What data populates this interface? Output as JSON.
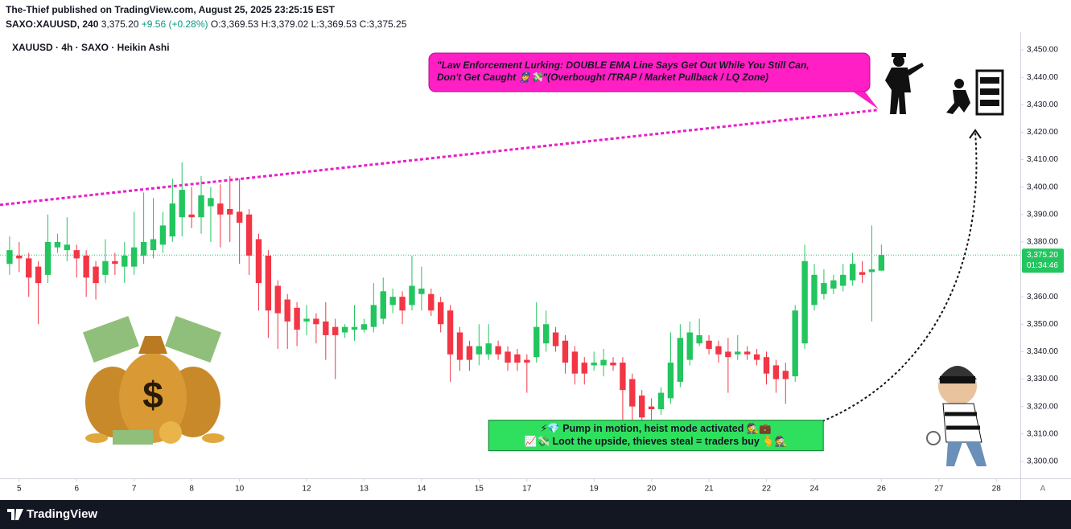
{
  "header": {
    "author_line": "The-Thief published on TradingView.com, August 25, 2025 23:25:15 EST",
    "symbol": "SAXO:XAUUSD, 240",
    "price": "3,375.20",
    "change": "+9.56 (+0.28%)",
    "ohlc": "O:3,369.53 H:3,379.02 L:3,369.53 C:3,375.25"
  },
  "footer": {
    "brand": "TradingView"
  },
  "chart_data": {
    "type": "candlestick",
    "title": "XAUUSD · 4h · SAXO · Heikin Ashi",
    "up_color": "#22c55e",
    "down_color": "#f23645",
    "x": [
      0,
      1,
      2,
      3,
      4,
      5,
      6,
      7,
      8,
      9,
      10,
      11,
      12,
      13,
      14,
      15,
      16,
      17,
      18,
      19,
      20,
      21,
      22,
      23,
      24,
      25,
      26,
      27,
      28,
      29,
      30,
      31,
      32,
      33,
      34,
      35,
      36,
      37,
      38,
      39,
      40,
      41,
      42,
      43,
      44,
      45,
      46,
      47,
      48,
      49,
      50,
      51,
      52,
      53,
      54,
      55,
      56,
      57,
      58,
      59,
      60,
      61,
      62,
      63,
      64,
      65,
      66,
      67,
      68,
      69,
      70,
      71,
      72,
      73,
      74,
      75,
      76,
      77,
      78,
      79,
      80,
      81,
      82,
      83,
      84,
      85,
      86,
      87,
      88,
      89,
      90,
      91
    ],
    "open": [
      3372,
      3375,
      3374,
      3371,
      3368,
      3378,
      3377,
      3377,
      3375,
      3371,
      3368,
      3373,
      3371,
      3371,
      3375,
      3377,
      3379,
      3382,
      3389,
      3390,
      3389,
      3393,
      3394,
      3392,
      3391,
      3390,
      3381,
      3375,
      3364,
      3359,
      3356,
      3351,
      3352,
      3351,
      3349,
      3347,
      3348,
      3348,
      3349,
      3352,
      3357,
      3360,
      3357,
      3361,
      3361,
      3358,
      3355,
      3347,
      3342,
      3339,
      3339,
      3342,
      3340,
      3339,
      3337,
      3338,
      3343,
      3347,
      3344,
      3340,
      3336,
      3335,
      3335,
      3336,
      3336,
      3330,
      3324,
      3320,
      3319,
      3323,
      3329,
      3337,
      3343,
      3344,
      3342,
      3340,
      3339,
      3340,
      3339,
      3338,
      3335,
      3333,
      3331,
      3343,
      3357,
      3361,
      3363,
      3364,
      3366,
      3369,
      3369,
      3369.53
    ],
    "high": [
      3382,
      3380,
      3376,
      3373,
      3390,
      3383,
      3389,
      3379,
      3377,
      3373,
      3381,
      3376,
      3380,
      3391,
      3398,
      3396,
      3391,
      3403,
      3409,
      3400,
      3404,
      3400,
      3401,
      3404,
      3403,
      3392,
      3383,
      3377,
      3366,
      3361,
      3358,
      3357,
      3354,
      3358,
      3352,
      3350,
      3357,
      3352,
      3365,
      3367,
      3363,
      3362,
      3375,
      3371,
      3363,
      3360,
      3357,
      3349,
      3344,
      3350,
      3350,
      3344,
      3342,
      3341,
      3339,
      3358,
      3355,
      3349,
      3346,
      3342,
      3338,
      3340,
      3341,
      3338,
      3338,
      3332,
      3326,
      3323,
      3327,
      3347,
      3350,
      3351,
      3352,
      3346,
      3344,
      3345,
      3346,
      3342,
      3341,
      3340,
      3337,
      3336,
      3357,
      3379,
      3372,
      3370,
      3368,
      3372,
      3376,
      3373,
      3386,
      3379.02
    ],
    "low": [
      3368,
      3369,
      3360,
      3350,
      3365,
      3376,
      3373,
      3367,
      3360,
      3359,
      3365,
      3368,
      3365,
      3368,
      3372,
      3374,
      3376,
      3380,
      3382,
      3385,
      3383,
      3380,
      3378,
      3380,
      3372,
      3368,
      3355,
      3345,
      3341,
      3341,
      3342,
      3346,
      3343,
      3337,
      3330,
      3345,
      3344,
      3347,
      3347,
      3350,
      3354,
      3350,
      3355,
      3355,
      3353,
      3347,
      3329,
      3333,
      3333,
      3335,
      3337,
      3337,
      3333,
      3333,
      3325,
      3336,
      3340,
      3340,
      3332,
      3328,
      3328,
      3333,
      3331,
      3333,
      3312,
      3313,
      3313,
      3314,
      3317,
      3321,
      3327,
      3335,
      3342,
      3339,
      3336,
      3325,
      3337,
      3337,
      3335,
      3328,
      3325,
      3321,
      3329,
      3341,
      3355,
      3359,
      3361,
      3362,
      3364,
      3365,
      3351,
      3369.53
    ],
    "close": [
      3377,
      3374,
      3367,
      3365,
      3380,
      3380,
      3379,
      3374,
      3367,
      3365,
      3373,
      3372,
      3375,
      3378,
      3380,
      3381,
      3386,
      3394,
      3399,
      3389,
      3397,
      3396,
      3390,
      3390,
      3387,
      3375,
      3365,
      3355,
      3354,
      3351,
      3348,
      3352,
      3350,
      3346,
      3346,
      3349,
      3349,
      3350,
      3357,
      3362,
      3360,
      3355,
      3364,
      3363,
      3355,
      3350,
      3339,
      3337,
      3337,
      3342,
      3343,
      3339,
      3336,
      3336,
      3336,
      3349,
      3350,
      3342,
      3336,
      3332,
      3332,
      3336,
      3337,
      3335,
      3326,
      3320,
      3316,
      3319,
      3325,
      3336,
      3345,
      3347,
      3346,
      3341,
      3339,
      3338,
      3340,
      3339,
      3337,
      3332,
      3330,
      3330,
      3355,
      3373,
      3368,
      3365,
      3366,
      3368,
      3372,
      3368,
      3370,
      3375.25
    ],
    "xlim": [
      -1,
      105.5
    ],
    "xticks": [
      {
        "value": 1,
        "label": "5"
      },
      {
        "value": 7,
        "label": "6"
      },
      {
        "value": 13,
        "label": "7"
      },
      {
        "value": 19,
        "label": "8"
      },
      {
        "value": 24,
        "label": "10"
      },
      {
        "value": 31,
        "label": "12"
      },
      {
        "value": 37,
        "label": "13"
      },
      {
        "value": 43,
        "label": "14"
      },
      {
        "value": 49,
        "label": "15"
      },
      {
        "value": 54,
        "label": "17"
      },
      {
        "value": 61,
        "label": "19"
      },
      {
        "value": 67,
        "label": "20"
      },
      {
        "value": 73,
        "label": "21"
      },
      {
        "value": 79,
        "label": "22"
      },
      {
        "value": 84,
        "label": "24"
      },
      {
        "value": 91,
        "label": "26"
      },
      {
        "value": 97,
        "label": "27"
      },
      {
        "value": 103,
        "label": "28"
      }
    ],
    "ylim": [
      3293.8,
      3455.6
    ],
    "yticks": [
      {
        "value": 3300,
        "label": "3,300.00"
      },
      {
        "value": 3310,
        "label": "3,310.00"
      },
      {
        "value": 3320,
        "label": "3,320.00"
      },
      {
        "value": 3330,
        "label": "3,330.00"
      },
      {
        "value": 3340,
        "label": "3,340.00"
      },
      {
        "value": 3350,
        "label": "3,350.00"
      },
      {
        "value": 3360,
        "label": "3,360.00"
      },
      {
        "value": 3370,
        "label": "3,370.00"
      },
      {
        "value": 3380,
        "label": "3,380.00"
      },
      {
        "value": 3390,
        "label": "3,390.00"
      },
      {
        "value": 3400,
        "label": "3,400.00"
      },
      {
        "value": 3410,
        "label": "3,410.00"
      },
      {
        "value": 3420,
        "label": "3,420.00"
      },
      {
        "value": 3430,
        "label": "3,430.00"
      },
      {
        "value": 3440,
        "label": "3,440.00"
      },
      {
        "value": 3450,
        "label": "3,450.00"
      }
    ],
    "last_price": {
      "value": 3375.2,
      "label": "3,375.20"
    },
    "countdown": "01:34:46",
    "trendline": {
      "color": "#e81ec8",
      "x": [
        -1,
        90.6
      ],
      "y": [
        3393.5,
        3428.1
      ]
    },
    "callout": [
      "\"Law Enforcement Lurking: DOUBLE EMA Line Says Get Out While You Still Can,",
      "Don't Get Caught 👮💸\"(Overbought /TRAP / Market Pullback / LQ Zone)"
    ],
    "signal_box": [
      "⚡💎 Pump in motion, heist mode activated 🕵️💼",
      "📈💸 Loot the upside, thieves steal = traders buy 🫰🕵️"
    ],
    "scale_button": "A"
  }
}
